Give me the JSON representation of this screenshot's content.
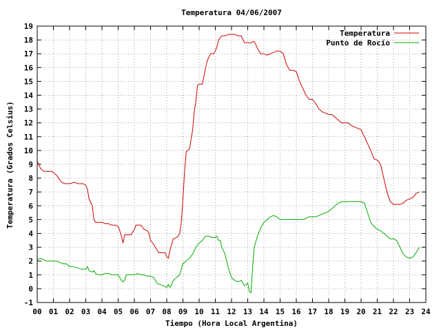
{
  "chart_data": {
    "type": "line",
    "title": "Temperatura 04/06/2007",
    "xlabel": "Tiempo (Hora Local Argentina)",
    "ylabel": "Temperatura (Grados Celsius)",
    "xlim": [
      0,
      24
    ],
    "ylim": [
      -1,
      19
    ],
    "x_ticks": [
      "00",
      "01",
      "02",
      "03",
      "04",
      "05",
      "06",
      "07",
      "08",
      "09",
      "10",
      "11",
      "12",
      "13",
      "14",
      "15",
      "16",
      "17",
      "18",
      "19",
      "20",
      "21",
      "22",
      "23",
      "24"
    ],
    "y_ticks": [
      -1,
      0,
      1,
      2,
      3,
      4,
      5,
      6,
      7,
      8,
      9,
      10,
      11,
      12,
      13,
      14,
      15,
      16,
      17,
      18,
      19
    ],
    "grid": true,
    "legend_position": "top-right",
    "series": [
      {
        "name": "Temperatura",
        "color": "#cc0000",
        "x": [
          0.0,
          0.1,
          0.2,
          0.4,
          0.6,
          0.9,
          1.2,
          1.5,
          1.7,
          1.9,
          2.0,
          2.3,
          2.5,
          2.8,
          3.0,
          3.1,
          3.2,
          3.4,
          3.5,
          3.6,
          3.8,
          4.0,
          4.2,
          4.4,
          4.6,
          4.8,
          5.0,
          5.1,
          5.2,
          5.3,
          5.4,
          5.5,
          5.6,
          5.8,
          6.0,
          6.1,
          6.2,
          6.4,
          6.6,
          6.8,
          6.9,
          7.0,
          7.2,
          7.3,
          7.4,
          7.5,
          7.7,
          7.9,
          8.0,
          8.1,
          8.2,
          8.4,
          8.6,
          8.7,
          8.8,
          8.9,
          9.0,
          9.1,
          9.2,
          9.3,
          9.4,
          9.6,
          9.7,
          9.8,
          9.9,
          10.0,
          10.2,
          10.4,
          10.5,
          10.7,
          10.9,
          11.0,
          11.1,
          11.2,
          11.4,
          11.6,
          11.8,
          12.0,
          12.2,
          12.4,
          12.6,
          12.8,
          13.0,
          13.2,
          13.4,
          13.6,
          13.8,
          14.0,
          14.2,
          14.4,
          14.6,
          14.8,
          15.0,
          15.2,
          15.4,
          15.6,
          15.8,
          16.0,
          16.2,
          16.4,
          16.6,
          16.8,
          17.0,
          17.2,
          17.4,
          17.6,
          17.8,
          18.0,
          18.2,
          18.4,
          18.6,
          18.8,
          19.0,
          19.2,
          19.4,
          19.6,
          19.8,
          20.0,
          20.2,
          20.4,
          20.6,
          20.8,
          21.0,
          21.2,
          21.4,
          21.6,
          21.8,
          22.0,
          22.2,
          22.4,
          22.6,
          22.8,
          23.0,
          23.2,
          23.4,
          23.6
        ],
        "y": [
          9.2,
          9.0,
          8.7,
          8.5,
          8.5,
          8.5,
          8.2,
          7.7,
          7.6,
          7.6,
          7.6,
          7.7,
          7.6,
          7.6,
          7.5,
          7.2,
          6.5,
          6.0,
          5.0,
          4.8,
          4.8,
          4.8,
          4.7,
          4.7,
          4.6,
          4.6,
          4.5,
          4.2,
          3.8,
          3.3,
          3.9,
          3.9,
          3.9,
          3.9,
          4.3,
          4.6,
          4.6,
          4.6,
          4.3,
          4.2,
          4.0,
          3.5,
          3.2,
          3.0,
          2.8,
          2.6,
          2.6,
          2.6,
          2.3,
          2.2,
          2.8,
          3.6,
          3.7,
          3.8,
          4.0,
          4.8,
          6.5,
          8.5,
          9.9,
          10.0,
          10.1,
          11.5,
          12.8,
          13.6,
          14.7,
          14.8,
          14.8,
          16.0,
          16.5,
          17.0,
          17.0,
          17.2,
          17.5,
          18.0,
          18.3,
          18.3,
          18.4,
          18.4,
          18.4,
          18.3,
          18.3,
          17.8,
          17.8,
          17.8,
          17.9,
          17.4,
          17.0,
          17.0,
          16.9,
          17.0,
          17.1,
          17.2,
          17.2,
          17.0,
          16.2,
          15.8,
          15.8,
          15.7,
          15.0,
          14.5,
          14.0,
          13.7,
          13.7,
          13.4,
          13.0,
          12.8,
          12.7,
          12.6,
          12.6,
          12.4,
          12.2,
          12.0,
          12.0,
          12.0,
          11.8,
          11.7,
          11.6,
          11.5,
          11.0,
          10.5,
          10.0,
          9.4,
          9.3,
          9.0,
          8.0,
          7.0,
          6.3,
          6.1,
          6.1,
          6.1,
          6.2,
          6.4,
          6.5,
          6.6,
          6.9,
          7.0
        ]
      },
      {
        "name": "Punto de Rocío",
        "color": "#00aa00",
        "x": [
          0.0,
          0.2,
          0.4,
          0.6,
          0.8,
          1.0,
          1.2,
          1.4,
          1.6,
          1.8,
          2.0,
          2.2,
          2.5,
          2.8,
          3.0,
          3.1,
          3.2,
          3.4,
          3.5,
          3.6,
          3.8,
          4.0,
          4.2,
          4.4,
          4.6,
          4.8,
          5.0,
          5.1,
          5.2,
          5.3,
          5.4,
          5.5,
          5.6,
          5.8,
          6.0,
          6.2,
          6.4,
          6.6,
          6.8,
          7.0,
          7.2,
          7.3,
          7.4,
          7.6,
          7.8,
          8.0,
          8.1,
          8.2,
          8.3,
          8.4,
          8.6,
          8.8,
          9.0,
          9.2,
          9.4,
          9.6,
          9.8,
          10.0,
          10.2,
          10.4,
          10.6,
          10.8,
          11.0,
          11.1,
          11.2,
          11.3,
          11.4,
          11.6,
          11.8,
          12.0,
          12.2,
          12.4,
          12.6,
          12.8,
          13.0,
          13.1,
          13.2,
          13.3,
          13.4,
          13.6,
          13.8,
          14.0,
          14.2,
          14.4,
          14.6,
          14.8,
          15.0,
          15.2,
          15.4,
          15.6,
          15.8,
          16.0,
          16.2,
          16.4,
          16.6,
          16.8,
          17.0,
          17.2,
          17.4,
          17.6,
          17.8,
          18.0,
          18.2,
          18.4,
          18.6,
          18.8,
          19.0,
          19.2,
          19.4,
          19.6,
          19.8,
          20.0,
          20.2,
          20.4,
          20.6,
          20.8,
          21.0,
          21.2,
          21.4,
          21.6,
          21.8,
          22.0,
          22.2,
          22.4,
          22.6,
          22.8,
          23.0,
          23.2,
          23.4,
          23.6
        ],
        "y": [
          2.1,
          2.2,
          2.1,
          2.0,
          2.0,
          2.0,
          2.0,
          1.9,
          1.8,
          1.8,
          1.6,
          1.6,
          1.5,
          1.4,
          1.4,
          1.6,
          1.3,
          1.2,
          1.3,
          1.1,
          1.0,
          1.0,
          1.1,
          1.1,
          1.0,
          1.0,
          1.0,
          0.8,
          0.6,
          0.5,
          0.6,
          1.0,
          1.0,
          1.0,
          1.0,
          1.1,
          1.0,
          1.0,
          0.9,
          0.9,
          0.8,
          0.6,
          0.4,
          0.3,
          0.2,
          0.1,
          0.3,
          0.1,
          0.3,
          0.6,
          0.8,
          1.0,
          1.8,
          2.0,
          2.2,
          2.5,
          3.0,
          3.3,
          3.5,
          3.8,
          3.8,
          3.7,
          3.7,
          3.8,
          3.5,
          3.5,
          3.0,
          2.5,
          1.5,
          0.8,
          0.6,
          0.5,
          0.6,
          0.2,
          0.4,
          -0.2,
          -0.3,
          1.5,
          3.0,
          3.8,
          4.4,
          4.8,
          5.0,
          5.2,
          5.3,
          5.2,
          5.0,
          5.0,
          5.0,
          5.0,
          5.0,
          5.0,
          5.0,
          5.0,
          5.1,
          5.2,
          5.2,
          5.2,
          5.3,
          5.4,
          5.5,
          5.6,
          5.8,
          6.0,
          6.2,
          6.3,
          6.3,
          6.3,
          6.3,
          6.3,
          6.3,
          6.3,
          6.2,
          5.5,
          4.8,
          4.5,
          4.3,
          4.2,
          4.0,
          3.8,
          3.6,
          3.6,
          3.5,
          3.0,
          2.5,
          2.3,
          2.2,
          2.3,
          2.6,
          3.0
        ]
      }
    ]
  }
}
